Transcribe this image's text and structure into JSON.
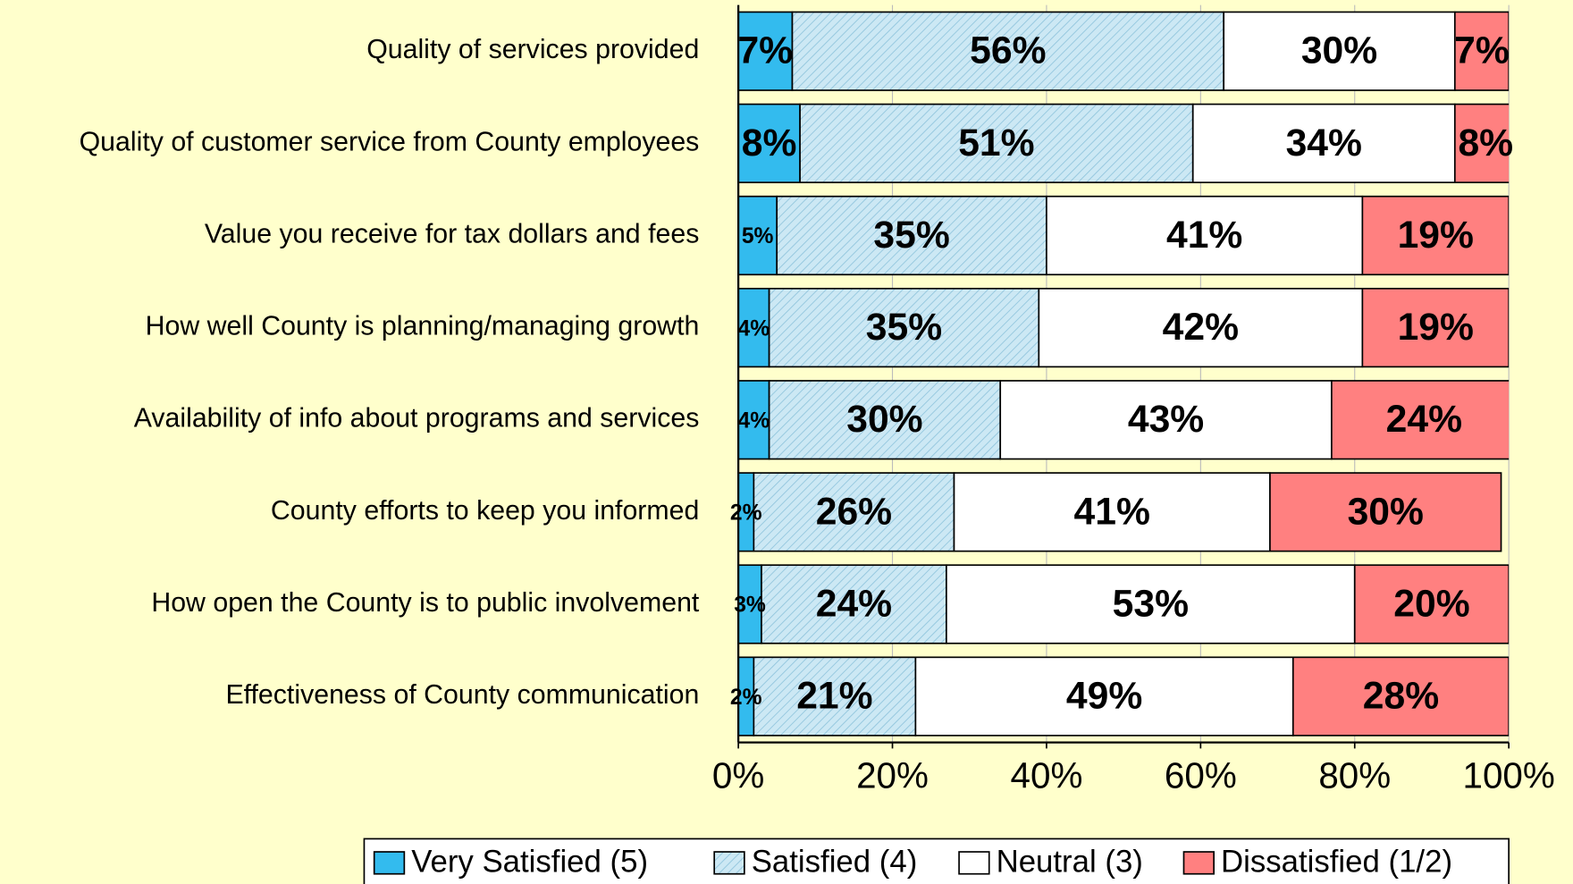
{
  "chart_data": {
    "type": "bar",
    "orientation": "horizontal",
    "stacked": true,
    "categories": [
      "Quality of services provided",
      "Quality of customer service from County employees",
      "Value you receive for tax dollars and fees",
      "How well County is planning/managing growth",
      "Availability of info about programs and services",
      "County efforts to keep you informed",
      "How open the County is to public involvement",
      "Effectiveness of County communication"
    ],
    "series": [
      {
        "name": "Very Satisfied (5)",
        "color": "#33bbee",
        "values": [
          7,
          8,
          5,
          4,
          4,
          2,
          3,
          2
        ],
        "value_labels": [
          "7%",
          "8%",
          "5%",
          "4%",
          "4%",
          "2%",
          "3%",
          "2%"
        ]
      },
      {
        "name": "Satisfied (4)",
        "color": "#cce8f4",
        "hatch": true,
        "values": [
          56,
          51,
          35,
          35,
          30,
          26,
          24,
          21
        ],
        "value_labels": [
          "56%",
          "51%",
          "35%",
          "35%",
          "30%",
          "26%",
          "24%",
          "21%"
        ]
      },
      {
        "name": "Neutral (3)",
        "color": "#ffffff",
        "values": [
          30,
          34,
          41,
          42,
          43,
          41,
          53,
          49
        ],
        "value_labels": [
          "30%",
          "34%",
          "41%",
          "42%",
          "43%",
          "41%",
          "53%",
          "49%"
        ]
      },
      {
        "name": "Dissatisfied (1/2)",
        "color": "#ff8080",
        "values": [
          7,
          8,
          19,
          19,
          24,
          30,
          20,
          28
        ],
        "value_labels": [
          "7%",
          "8%",
          "19%",
          "19%",
          "24%",
          "30%",
          "20%",
          "28%"
        ]
      }
    ],
    "xlim": [
      0,
      100
    ],
    "xticks": [
      {
        "value": 0,
        "label": "0%"
      },
      {
        "value": 20,
        "label": "20%"
      },
      {
        "value": 40,
        "label": "40%"
      },
      {
        "value": 60,
        "label": "60%"
      },
      {
        "value": 80,
        "label": "80%"
      },
      {
        "value": 100,
        "label": "100%"
      }
    ],
    "legend": "bottom"
  }
}
